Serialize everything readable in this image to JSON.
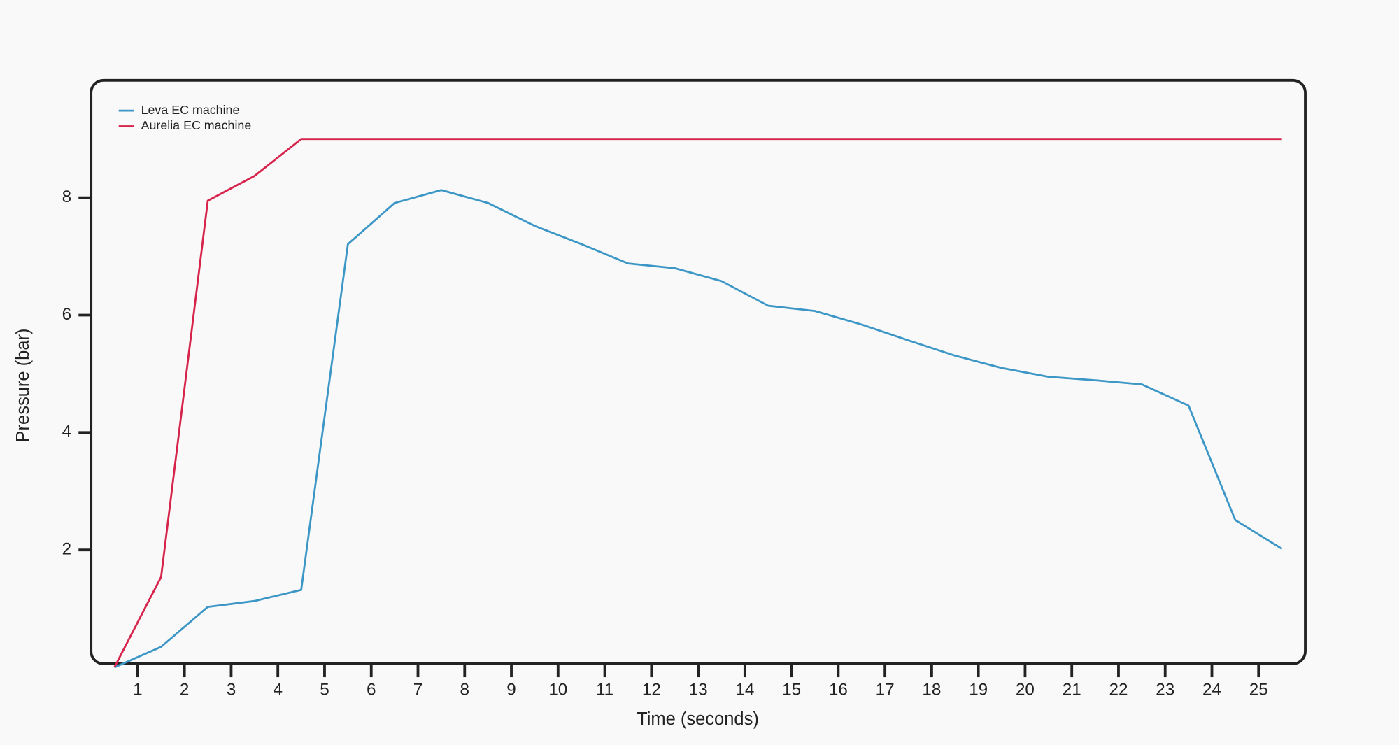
{
  "chart_data": {
    "type": "line",
    "xlabel": "Time (seconds)",
    "ylabel": "Pressure (bar)",
    "x": [
      0.5,
      1.5,
      2.5,
      3.5,
      4.5,
      5.5,
      6.5,
      7.5,
      8.5,
      9.5,
      10.5,
      11.5,
      12.5,
      13.5,
      14.5,
      15.5,
      16.5,
      17.5,
      18.5,
      19.5,
      20.5,
      21.5,
      22.5,
      23.5,
      24.5,
      25.5
    ],
    "series": [
      {
        "name": "Leva EC machine",
        "color": "#3d97c6",
        "values": [
          0,
          0.35,
          1.03,
          1.13,
          1.32,
          7.21,
          7.91,
          8.13,
          7.91,
          7.52,
          7.21,
          6.88,
          6.8,
          6.58,
          6.16,
          6.07,
          5.84,
          5.57,
          5.31,
          5.1,
          4.95,
          4.89,
          4.82,
          4.46,
          2.51,
          2.02
        ]
      },
      {
        "name": "Aurelia EC machine",
        "color": "#d6244b",
        "values": [
          0,
          1.54,
          7.95,
          8.37,
          9,
          9,
          9,
          9,
          9,
          9,
          9,
          9,
          9,
          9,
          9,
          9,
          9,
          9,
          9,
          9,
          9,
          9,
          9,
          9,
          9,
          9
        ]
      }
    ],
    "xlim": [
      0,
      26
    ],
    "xticks": [
      1,
      2,
      3,
      4,
      5,
      6,
      7,
      8,
      9,
      10,
      11,
      12,
      13,
      14,
      15,
      16,
      17,
      18,
      19,
      20,
      21,
      22,
      23,
      24,
      25
    ],
    "ylim": [
      0,
      10
    ],
    "yticks": [
      2,
      4,
      6,
      8
    ],
    "legend": "upper left",
    "grid": false
  }
}
